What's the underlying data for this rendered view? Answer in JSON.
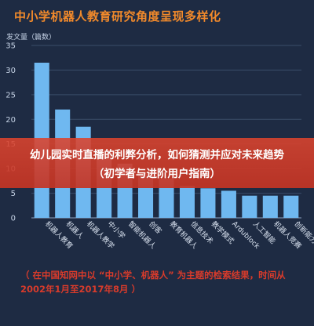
{
  "banner": {
    "line1": "幼儿园实时直播的利弊分析，如何猜测并应对未来趋势",
    "line2": "（初学者与进阶用户指南）"
  },
  "footnote": "（ 在中国知网中以 “中小学、机器人” 为主题的检索结果，时间从2002年1月至2017年8月 ）",
  "colors": {
    "background": "#1e2b43",
    "bar": "#6fb8f0",
    "title": "#f28a2b",
    "banner": "#d0402c",
    "footnote": "#d83b2b"
  },
  "chart_data": {
    "type": "bar",
    "title": "中小学机器人教育研究角度呈现多样化",
    "ylabel": "发文量（篇数）",
    "ylim": [
      0,
      35
    ],
    "yticks": [
      0,
      5,
      10,
      15,
      20,
      25,
      30,
      35
    ],
    "grid": true,
    "categories": [
      "机器人教育",
      "机器人",
      "机器人教学",
      "中小学",
      "智能机器人",
      "创客",
      "教育机器人",
      "信息技术",
      "教学模式",
      "Ardublock",
      "人工智能",
      "机器人竞赛",
      "创新能力"
    ],
    "values": [
      31.5,
      22,
      18.5,
      13,
      11,
      9,
      8,
      6.5,
      6,
      5.5,
      4.5,
      4.5,
      4.5
    ]
  }
}
